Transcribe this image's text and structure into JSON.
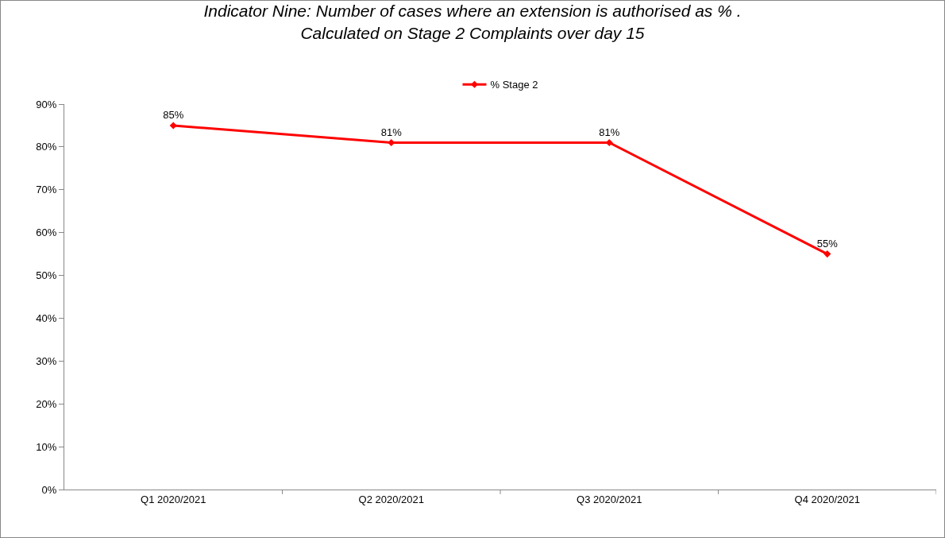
{
  "chart_data": {
    "type": "line",
    "title": "Indicator Nine: Number of cases where an extension is authorised as % .\nCalculated on Stage 2 Complaints over day 15",
    "categories": [
      "Q1 2020/2021",
      "Q2 2020/2021",
      "Q3 2020/2021",
      "Q4 2020/2021"
    ],
    "series": [
      {
        "name": "% Stage 2",
        "color": "#ff0000",
        "values": [
          85,
          81,
          81,
          55
        ]
      }
    ],
    "ylim": [
      0,
      90
    ],
    "yticks": [
      {
        "value": 0,
        "label": "0%"
      },
      {
        "value": 10,
        "label": "10%"
      },
      {
        "value": 20,
        "label": "20%"
      },
      {
        "value": 30,
        "label": "30%"
      },
      {
        "value": 40,
        "label": "40%"
      },
      {
        "value": 50,
        "label": "50%"
      },
      {
        "value": 60,
        "label": "60%"
      },
      {
        "value": 70,
        "label": "70%"
      },
      {
        "value": 80,
        "label": "80%"
      },
      {
        "value": 90,
        "label": "90%"
      }
    ],
    "value_labels": [
      "85%",
      "81%",
      "81%",
      "55%"
    ],
    "grid": false,
    "legend": "top",
    "marker": "diamond",
    "line_style": "solid"
  }
}
